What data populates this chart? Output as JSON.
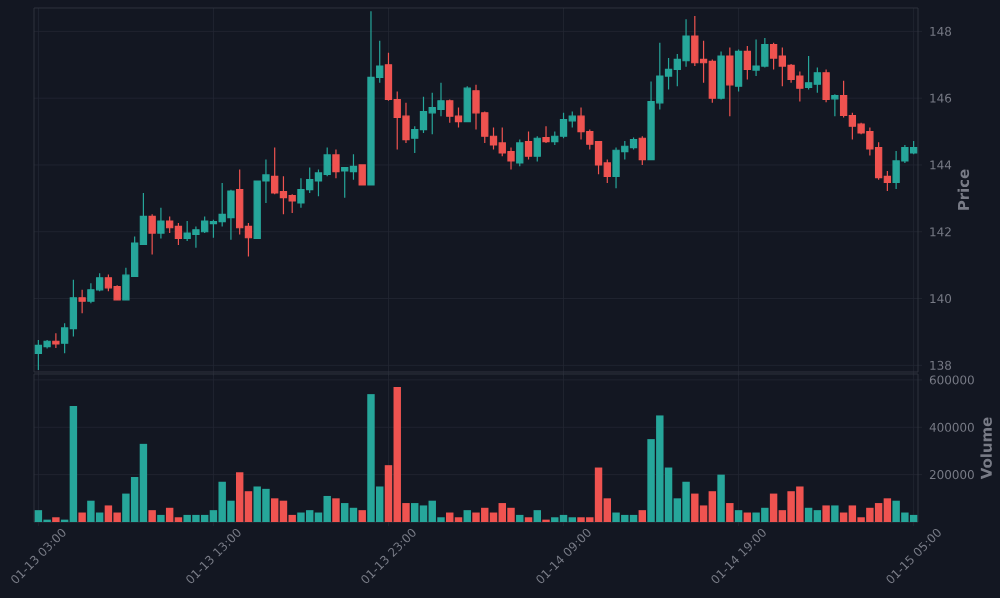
{
  "chart_data": [
    {
      "type": "candlestick",
      "categories": [
        null,
        null,
        null,
        null,
        null,
        null,
        null,
        null,
        null,
        null,
        null,
        null,
        null,
        null,
        null,
        null,
        null,
        null,
        null,
        null,
        null,
        null,
        null,
        null,
        null,
        null,
        null,
        null,
        null,
        null,
        null,
        null,
        null,
        null,
        null,
        null,
        null,
        null,
        null,
        null,
        null,
        null,
        null,
        null,
        null,
        null,
        null,
        null,
        null,
        null,
        null,
        null,
        null,
        null,
        null,
        null,
        null,
        null,
        null,
        null,
        null,
        null,
        null,
        null,
        null,
        null,
        null,
        null,
        null,
        null,
        null,
        null,
        null,
        null,
        null,
        null,
        null,
        null,
        null,
        null,
        null,
        null,
        null,
        null,
        null,
        null,
        null,
        null,
        null,
        null,
        null,
        null,
        null,
        null,
        null,
        null,
        null,
        null,
        null,
        null,
        null
      ],
      "ohlc": [
        [
          138.36,
          138.76,
          137.86,
          138.6
        ],
        [
          138.56,
          138.76,
          138.5,
          138.72
        ],
        [
          138.72,
          138.96,
          138.52,
          138.64
        ],
        [
          138.66,
          139.26,
          138.36,
          139.12
        ],
        [
          139.1,
          140.56,
          138.86,
          140.02
        ],
        [
          140.02,
          140.26,
          139.56,
          139.92
        ],
        [
          139.92,
          140.46,
          139.86,
          140.26
        ],
        [
          140.26,
          140.76,
          140.22,
          140.62
        ],
        [
          140.62,
          140.72,
          140.22,
          140.32
        ],
        [
          140.36,
          140.4,
          139.96,
          139.96
        ],
        [
          139.96,
          140.92,
          139.96,
          140.7
        ],
        [
          140.66,
          141.86,
          140.66,
          141.66
        ],
        [
          141.62,
          143.16,
          141.62,
          142.46
        ],
        [
          142.46,
          142.52,
          141.32,
          141.96
        ],
        [
          141.96,
          142.72,
          141.8,
          142.32
        ],
        [
          142.32,
          142.46,
          141.96,
          142.12
        ],
        [
          142.16,
          142.26,
          141.6,
          141.8
        ],
        [
          141.8,
          142.32,
          141.72,
          141.96
        ],
        [
          141.92,
          142.16,
          141.52,
          142.06
        ],
        [
          142.0,
          142.46,
          141.96,
          142.32
        ],
        [
          142.24,
          142.36,
          141.82,
          142.3
        ],
        [
          142.3,
          143.46,
          142.16,
          142.52
        ],
        [
          142.42,
          143.26,
          141.76,
          143.22
        ],
        [
          143.26,
          143.86,
          141.92,
          142.12
        ],
        [
          142.16,
          142.26,
          141.26,
          141.82
        ],
        [
          141.8,
          143.52,
          141.8,
          143.52
        ],
        [
          143.52,
          144.16,
          142.86,
          143.7
        ],
        [
          143.66,
          144.52,
          143.12,
          143.16
        ],
        [
          143.2,
          143.66,
          142.52,
          143.02
        ],
        [
          143.08,
          143.12,
          142.56,
          142.92
        ],
        [
          142.86,
          143.6,
          142.72,
          143.26
        ],
        [
          143.26,
          143.92,
          143.16,
          143.56
        ],
        [
          143.52,
          143.86,
          143.06,
          143.76
        ],
        [
          143.72,
          144.52,
          143.66,
          144.3
        ],
        [
          144.3,
          144.46,
          143.6,
          143.8
        ],
        [
          143.82,
          143.92,
          143.02,
          143.92
        ],
        [
          143.8,
          144.32,
          143.56,
          143.96
        ],
        [
          144.0,
          144.0,
          143.4,
          143.4
        ],
        [
          143.4,
          148.6,
          143.4,
          146.62
        ],
        [
          146.62,
          147.72,
          146.46,
          146.96
        ],
        [
          147.0,
          147.36,
          145.92,
          145.96
        ],
        [
          145.96,
          146.2,
          144.46,
          145.42
        ],
        [
          145.46,
          145.86,
          144.66,
          144.76
        ],
        [
          144.8,
          145.16,
          144.36,
          145.06
        ],
        [
          145.06,
          146.04,
          144.96,
          145.6
        ],
        [
          145.56,
          146.16,
          144.92,
          145.72
        ],
        [
          145.66,
          146.46,
          145.46,
          145.92
        ],
        [
          145.92,
          145.96,
          145.26,
          145.46
        ],
        [
          145.46,
          145.72,
          145.12,
          145.3
        ],
        [
          145.3,
          146.36,
          145.3,
          146.3
        ],
        [
          146.22,
          146.4,
          145.06,
          145.56
        ],
        [
          145.56,
          145.6,
          144.66,
          144.86
        ],
        [
          144.86,
          145.12,
          144.46,
          144.6
        ],
        [
          144.66,
          145.12,
          144.26,
          144.36
        ],
        [
          144.4,
          144.52,
          143.86,
          144.12
        ],
        [
          144.06,
          144.76,
          143.96,
          144.66
        ],
        [
          144.7,
          145.0,
          144.16,
          144.26
        ],
        [
          144.26,
          144.86,
          144.1,
          144.8
        ],
        [
          144.82,
          145.16,
          144.66,
          144.7
        ],
        [
          144.7,
          145.0,
          144.6,
          144.86
        ],
        [
          144.86,
          145.56,
          144.8,
          145.36
        ],
        [
          145.32,
          145.6,
          145.12,
          145.46
        ],
        [
          145.46,
          145.72,
          144.76,
          145.0
        ],
        [
          145.0,
          145.06,
          144.46,
          144.62
        ],
        [
          144.7,
          144.7,
          143.72,
          144.0
        ],
        [
          144.06,
          144.16,
          143.46,
          143.66
        ],
        [
          143.66,
          144.52,
          143.3,
          144.44
        ],
        [
          144.4,
          144.72,
          144.16,
          144.56
        ],
        [
          144.52,
          144.82,
          144.46,
          144.76
        ],
        [
          144.8,
          144.86,
          144.0,
          144.16
        ],
        [
          144.16,
          146.5,
          144.16,
          145.9
        ],
        [
          145.86,
          147.66,
          145.66,
          146.66
        ],
        [
          146.66,
          147.2,
          146.26,
          146.86
        ],
        [
          146.86,
          147.32,
          146.36,
          147.16
        ],
        [
          147.12,
          148.36,
          146.94,
          147.86
        ],
        [
          147.86,
          148.46,
          146.96,
          147.06
        ],
        [
          147.16,
          147.72,
          146.46,
          147.06
        ],
        [
          147.1,
          147.16,
          145.86,
          146.0
        ],
        [
          146.0,
          147.4,
          145.96,
          147.26
        ],
        [
          147.26,
          147.52,
          145.46,
          146.4
        ],
        [
          146.36,
          147.46,
          146.2,
          147.4
        ],
        [
          147.4,
          147.56,
          146.56,
          146.86
        ],
        [
          146.84,
          147.76,
          146.66,
          146.96
        ],
        [
          146.96,
          147.8,
          146.92,
          147.6
        ],
        [
          147.6,
          147.66,
          146.86,
          147.2
        ],
        [
          147.26,
          147.52,
          146.36,
          146.96
        ],
        [
          146.98,
          147.02,
          146.46,
          146.56
        ],
        [
          146.66,
          146.8,
          145.9,
          146.3
        ],
        [
          146.32,
          147.26,
          146.26,
          146.46
        ],
        [
          146.42,
          146.92,
          146.16,
          146.76
        ],
        [
          146.76,
          146.86,
          145.88,
          145.96
        ],
        [
          145.98,
          146.12,
          145.46,
          146.08
        ],
        [
          146.08,
          146.52,
          145.42,
          145.48
        ],
        [
          145.48,
          145.56,
          144.76,
          145.16
        ],
        [
          145.22,
          145.26,
          144.92,
          144.96
        ],
        [
          145.0,
          145.12,
          144.28,
          144.48
        ],
        [
          144.52,
          144.68,
          143.56,
          143.62
        ],
        [
          143.66,
          143.82,
          143.22,
          143.48
        ],
        [
          143.48,
          144.42,
          143.28,
          144.12
        ],
        [
          144.12,
          144.6,
          144.06,
          144.52
        ],
        [
          144.36,
          144.72,
          144.32,
          144.52
        ]
      ],
      "colors": [
        "#26a69a",
        "#26a69a",
        "#ef5350",
        "#26a69a",
        "#26a69a",
        "#ef5350",
        "#26a69a",
        "#26a69a",
        "#ef5350",
        "#ef5350",
        "#26a69a",
        "#26a69a",
        "#26a69a",
        "#ef5350",
        "#26a69a",
        "#ef5350",
        "#ef5350",
        "#26a69a",
        "#26a69a",
        "#26a69a",
        "#26a69a",
        "#26a69a",
        "#26a69a",
        "#ef5350",
        "#ef5350",
        "#26a69a",
        "#26a69a",
        "#ef5350",
        "#ef5350",
        "#ef5350",
        "#26a69a",
        "#26a69a",
        "#26a69a",
        "#26a69a",
        "#ef5350",
        "#26a69a",
        "#26a69a",
        "#ef5350",
        "#26a69a",
        "#26a69a",
        "#ef5350",
        "#ef5350",
        "#ef5350",
        "#26a69a",
        "#26a69a",
        "#26a69a",
        "#26a69a",
        "#ef5350",
        "#ef5350",
        "#26a69a",
        "#ef5350",
        "#ef5350",
        "#ef5350",
        "#ef5350",
        "#ef5350",
        "#26a69a",
        "#ef5350",
        "#26a69a",
        "#ef5350",
        "#26a69a",
        "#26a69a",
        "#26a69a",
        "#ef5350",
        "#ef5350",
        "#ef5350",
        "#ef5350",
        "#26a69a",
        "#26a69a",
        "#26a69a",
        "#ef5350",
        "#26a69a",
        "#26a69a",
        "#26a69a",
        "#26a69a",
        "#26a69a",
        "#ef5350",
        "#ef5350",
        "#ef5350",
        "#26a69a",
        "#ef5350",
        "#26a69a",
        "#ef5350",
        "#26a69a",
        "#26a69a",
        "#ef5350",
        "#ef5350",
        "#ef5350",
        "#ef5350",
        "#26a69a",
        "#26a69a",
        "#ef5350",
        "#26a69a",
        "#ef5350",
        "#ef5350",
        "#ef5350",
        "#ef5350",
        "#ef5350",
        "#ef5350",
        "#26a69a",
        "#26a69a",
        "#26a69a"
      ],
      "ylim": [
        137.8,
        148.7
      ],
      "yticks": [
        138,
        140,
        142,
        144,
        146,
        148
      ],
      "ylabel": "Price",
      "grid": true
    },
    {
      "type": "bar",
      "categories": [
        "01-13 03:00",
        null,
        null,
        null,
        null,
        null,
        null,
        null,
        null,
        null,
        null,
        null,
        null,
        null,
        null,
        null,
        null,
        null,
        null,
        null,
        "01-13 13:00",
        null,
        null,
        null,
        null,
        null,
        null,
        null,
        null,
        null,
        null,
        null,
        null,
        null,
        null,
        null,
        null,
        null,
        null,
        null,
        "01-13 23:00",
        null,
        null,
        null,
        null,
        null,
        null,
        null,
        null,
        null,
        null,
        null,
        null,
        null,
        null,
        null,
        null,
        null,
        null,
        null,
        "01-14 09:00",
        null,
        null,
        null,
        null,
        null,
        null,
        null,
        null,
        null,
        null,
        null,
        null,
        null,
        null,
        null,
        null,
        null,
        null,
        null,
        "01-14 19:00",
        null,
        null,
        null,
        null,
        null,
        null,
        null,
        null,
        null,
        null,
        null,
        null,
        null,
        null,
        null,
        null,
        null,
        null,
        null,
        "01-15 05:00"
      ],
      "values": [
        50000,
        10000,
        20000,
        10000,
        490000,
        40000,
        90000,
        40000,
        70000,
        40000,
        120000,
        190000,
        330000,
        50000,
        30000,
        60000,
        20000,
        30000,
        30000,
        30000,
        50000,
        170000,
        90000,
        210000,
        130000,
        150000,
        140000,
        100000,
        90000,
        30000,
        40000,
        50000,
        40000,
        110000,
        100000,
        80000,
        60000,
        50000,
        540000,
        150000,
        240000,
        570000,
        80000,
        80000,
        70000,
        90000,
        20000,
        40000,
        20000,
        50000,
        40000,
        60000,
        40000,
        80000,
        60000,
        30000,
        20000,
        50000,
        10000,
        20000,
        30000,
        20000,
        20000,
        20000,
        230000,
        100000,
        40000,
        30000,
        30000,
        50000,
        350000,
        450000,
        230000,
        100000,
        170000,
        120000,
        70000,
        130000,
        200000,
        80000,
        50000,
        40000,
        40000,
        60000,
        120000,
        50000,
        130000,
        150000,
        60000,
        50000,
        70000,
        70000,
        40000,
        70000,
        20000,
        60000,
        80000,
        100000,
        90000,
        40000,
        30000
      ],
      "colors": [
        "#26a69a",
        "#26a69a",
        "#ef5350",
        "#26a69a",
        "#26a69a",
        "#ef5350",
        "#26a69a",
        "#26a69a",
        "#ef5350",
        "#ef5350",
        "#26a69a",
        "#26a69a",
        "#26a69a",
        "#ef5350",
        "#26a69a",
        "#ef5350",
        "#ef5350",
        "#26a69a",
        "#26a69a",
        "#26a69a",
        "#26a69a",
        "#26a69a",
        "#26a69a",
        "#ef5350",
        "#ef5350",
        "#26a69a",
        "#26a69a",
        "#ef5350",
        "#ef5350",
        "#ef5350",
        "#26a69a",
        "#26a69a",
        "#26a69a",
        "#26a69a",
        "#ef5350",
        "#26a69a",
        "#26a69a",
        "#ef5350",
        "#26a69a",
        "#26a69a",
        "#ef5350",
        "#ef5350",
        "#ef5350",
        "#26a69a",
        "#26a69a",
        "#26a69a",
        "#26a69a",
        "#ef5350",
        "#ef5350",
        "#26a69a",
        "#ef5350",
        "#ef5350",
        "#ef5350",
        "#ef5350",
        "#ef5350",
        "#26a69a",
        "#ef5350",
        "#26a69a",
        "#ef5350",
        "#26a69a",
        "#26a69a",
        "#26a69a",
        "#ef5350",
        "#ef5350",
        "#ef5350",
        "#ef5350",
        "#26a69a",
        "#26a69a",
        "#26a69a",
        "#ef5350",
        "#26a69a",
        "#26a69a",
        "#26a69a",
        "#26a69a",
        "#26a69a",
        "#ef5350",
        "#ef5350",
        "#ef5350",
        "#26a69a",
        "#ef5350",
        "#26a69a",
        "#ef5350",
        "#26a69a",
        "#26a69a",
        "#ef5350",
        "#ef5350",
        "#ef5350",
        "#ef5350",
        "#26a69a",
        "#26a69a",
        "#ef5350",
        "#26a69a",
        "#ef5350",
        "#ef5350",
        "#ef5350",
        "#ef5350",
        "#ef5350",
        "#ef5350",
        "#26a69a",
        "#26a69a",
        "#26a69a"
      ],
      "ylim": [
        0,
        625000
      ],
      "yticks": [
        200000,
        400000,
        600000
      ],
      "ylabel": "Volume",
      "grid": true
    }
  ]
}
